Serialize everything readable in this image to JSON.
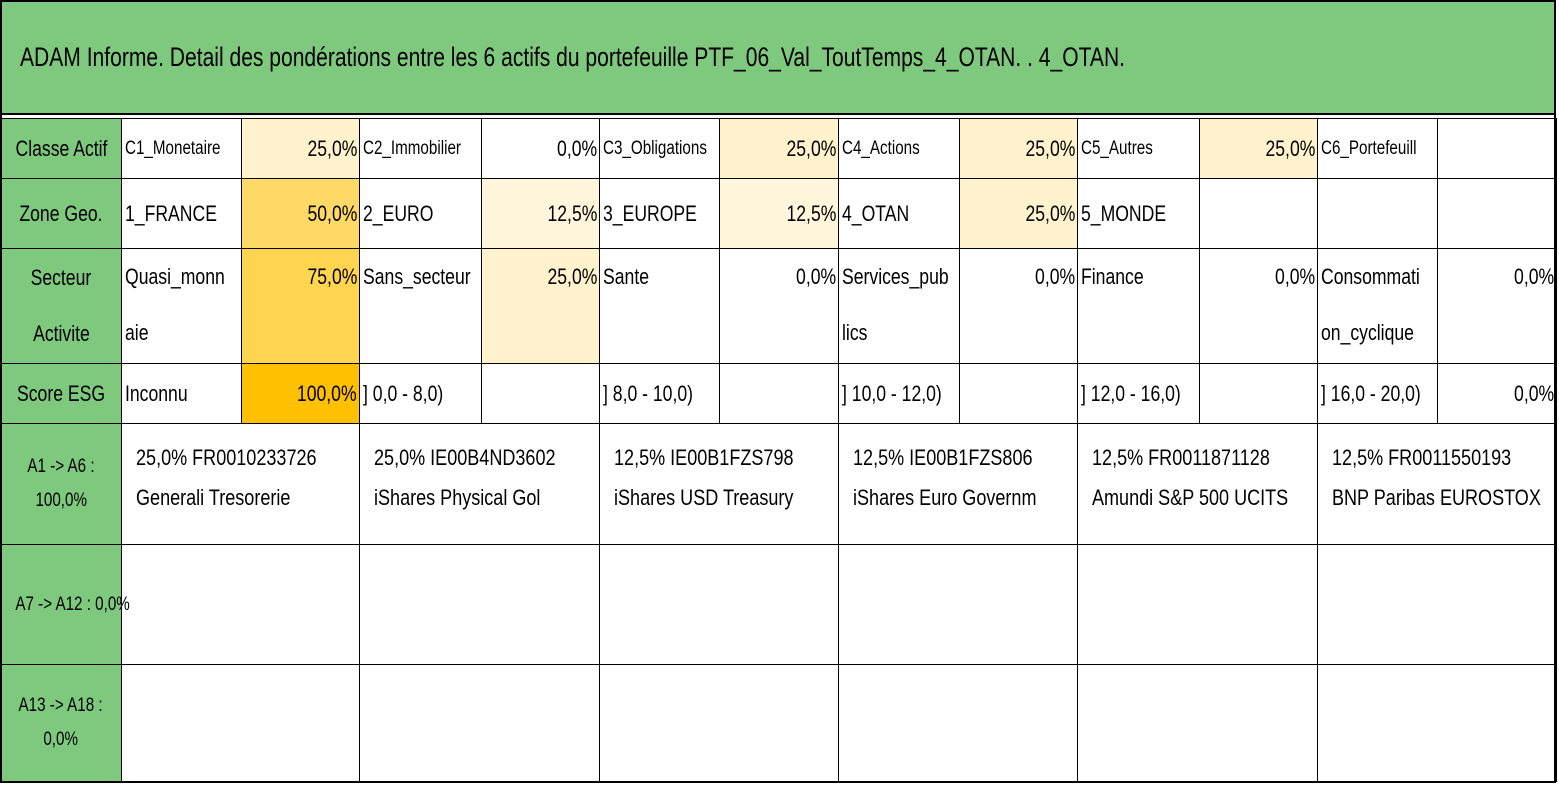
{
  "title": "ADAM Informe. Detail des pondérations entre les 6 actifs du portefeuille PTF_06_Val_ToutTemps_4_OTAN. . 4_OTAN.",
  "rows": {
    "classe": {
      "label": "Classe Actif",
      "cells": [
        {
          "name": "C1_Monetaire",
          "pct": "25,0%"
        },
        {
          "name": "C2_Immobilier",
          "pct": "0,0%"
        },
        {
          "name": "C3_Obligations",
          "pct": "25,0%"
        },
        {
          "name": "C4_Actions",
          "pct": "25,0%"
        },
        {
          "name": "C5_Autres",
          "pct": "25,0%"
        },
        {
          "name": "C6_Portefeuill",
          "pct": ""
        }
      ]
    },
    "zone": {
      "label": "Zone Geo.",
      "cells": [
        {
          "name": "1_FRANCE",
          "pct": "50,0%"
        },
        {
          "name": "2_EURO",
          "pct": "12,5%"
        },
        {
          "name": "3_EUROPE",
          "pct": "12,5%"
        },
        {
          "name": "4_OTAN",
          "pct": "25,0%"
        },
        {
          "name": "5_MONDE",
          "pct": ""
        },
        {
          "name": "",
          "pct": ""
        }
      ]
    },
    "secteur": {
      "label_line1": "Secteur",
      "label_line2": "Activite",
      "cells": [
        {
          "name_line1": "Quasi_monn",
          "name_line2": "aie",
          "pct": "75,0%"
        },
        {
          "name_line1": "Sans_secteur",
          "name_line2": "",
          "pct": "25,0%"
        },
        {
          "name_line1": "Sante",
          "name_line2": "",
          "pct": "0,0%"
        },
        {
          "name_line1": "Services_pub",
          "name_line2": "lics",
          "pct": "0,0%"
        },
        {
          "name_line1": "Finance",
          "name_line2": "",
          "pct": "0,0%"
        },
        {
          "name_line1": "Consommati",
          "name_line2": "on_cyclique",
          "pct": "0,0%"
        }
      ]
    },
    "esg": {
      "label": "Score ESG",
      "cells": [
        {
          "name": "Inconnu",
          "pct": "100,0%"
        },
        {
          "name": "] 0,0 - 8,0)",
          "pct": ""
        },
        {
          "name": "] 8,0 - 10,0)",
          "pct": ""
        },
        {
          "name": "] 10,0 - 12,0)",
          "pct": ""
        },
        {
          "name": "] 12,0 - 16,0)",
          "pct": ""
        },
        {
          "name": "] 16,0 - 20,0)",
          "pct": "0,0%"
        }
      ]
    }
  },
  "assets": {
    "a1_a6": {
      "label_line1": "A1 -> A6 :",
      "label_line2": "100,0%",
      "items": [
        {
          "line1": "25,0% FR0010233726",
          "line2": "Generali Tresorerie"
        },
        {
          "line1": "25,0% IE00B4ND3602",
          "line2": "iShares Physical Gol"
        },
        {
          "line1": "12,5% IE00B1FZS798",
          "line2": "iShares USD Treasury"
        },
        {
          "line1": "12,5% IE00B1FZS806",
          "line2": "iShares Euro Governm"
        },
        {
          "line1": "12,5% FR0011871128",
          "line2": "Amundi S&P 500 UCITS"
        },
        {
          "line1": "12,5% FR0011550193",
          "line2": "BNP Paribas EUROSTOX"
        }
      ]
    },
    "a7_a12": {
      "label": "A7 -> A12 : 0,0%"
    },
    "a13_a18": {
      "label_line1": "A13 -> A18 :",
      "label_line2": "0,0%"
    }
  },
  "colors": {
    "header_green": "#7ec97e",
    "pct_light": "#fff2cc",
    "pct_mid": "#ffe699",
    "pct_dark": "#ffd966",
    "pct_deep": "#ffc000"
  }
}
